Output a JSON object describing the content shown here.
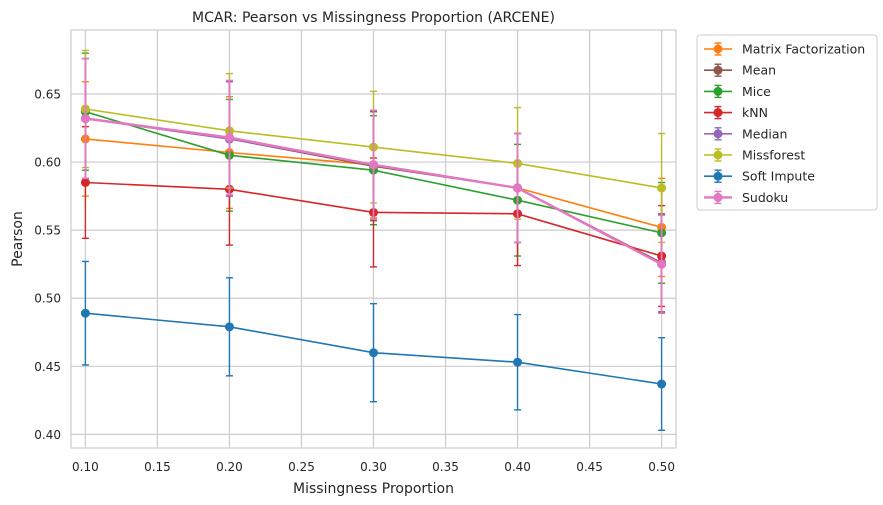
{
  "chart_data": {
    "type": "line",
    "title": "MCAR: Pearson vs Missingness Proportion (ARCENE)",
    "xlabel": "Missingness Proportion",
    "ylabel": "Pearson",
    "xlim": [
      0.09,
      0.51
    ],
    "ylim": [
      0.39,
      0.697
    ],
    "grid": true,
    "legend_position": "outside-right",
    "x": [
      0.1,
      0.2,
      0.3,
      0.4,
      0.5
    ],
    "x_ticks": [
      0.1,
      0.15,
      0.2,
      0.25,
      0.3,
      0.35,
      0.4,
      0.45,
      0.5
    ],
    "x_tick_labels": [
      "0.10",
      "0.15",
      "0.20",
      "0.25",
      "0.30",
      "0.35",
      "0.40",
      "0.45",
      "0.50"
    ],
    "y_ticks": [
      0.4,
      0.45,
      0.5,
      0.55,
      0.6,
      0.65
    ],
    "y_tick_labels": [
      "0.40",
      "0.45",
      "0.50",
      "0.55",
      "0.60",
      "0.65"
    ],
    "series": [
      {
        "name": "Matrix Factorization",
        "color": "#ff7f0e",
        "values": [
          0.617,
          0.607,
          0.598,
          0.581,
          0.552
        ],
        "errors": [
          0.042,
          0.041,
          0.039,
          0.04,
          0.036
        ]
      },
      {
        "name": "Mean",
        "color": "#8c564b",
        "values": [
          0.632,
          0.617,
          0.597,
          0.581,
          0.526
        ],
        "errors": [
          0.044,
          0.042,
          0.04,
          0.04,
          0.036
        ]
      },
      {
        "name": "Mice",
        "color": "#2ca02c",
        "values": [
          0.637,
          0.605,
          0.594,
          0.572,
          0.548
        ],
        "errors": [
          0.043,
          0.041,
          0.04,
          0.041,
          0.037
        ]
      },
      {
        "name": "kNN",
        "color": "#d62728",
        "values": [
          0.585,
          0.58,
          0.563,
          0.562,
          0.531
        ],
        "errors": [
          0.041,
          0.041,
          0.04,
          0.038,
          0.037
        ]
      },
      {
        "name": "Median",
        "color": "#9467bd",
        "values": [
          0.632,
          0.617,
          0.598,
          0.581,
          0.525
        ],
        "errors": [
          0.044,
          0.042,
          0.04,
          0.04,
          0.036
        ]
      },
      {
        "name": "Missforest",
        "color": "#bcbd22",
        "values": [
          0.639,
          0.623,
          0.611,
          0.599,
          0.581
        ],
        "errors": [
          0.043,
          0.042,
          0.041,
          0.041,
          0.04
        ]
      },
      {
        "name": "Soft Impute",
        "color": "#1f77b4",
        "values": [
          0.489,
          0.479,
          0.46,
          0.453,
          0.437
        ],
        "errors": [
          0.038,
          0.036,
          0.036,
          0.035,
          0.034
        ]
      },
      {
        "name": "Sudoku",
        "color": "#e377c2",
        "values": [
          0.632,
          0.618,
          0.598,
          0.581,
          0.525
        ],
        "errors": [
          0.044,
          0.042,
          0.04,
          0.04,
          0.036
        ],
        "thick": true
      }
    ]
  }
}
